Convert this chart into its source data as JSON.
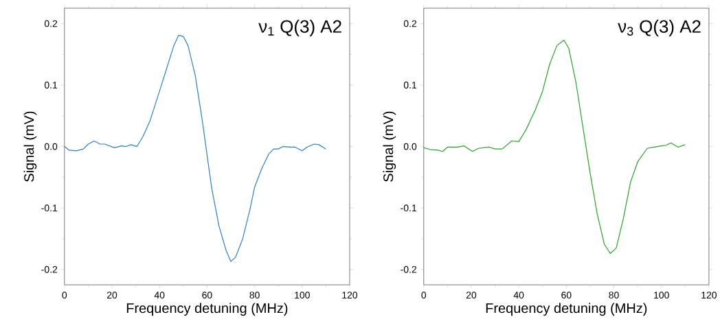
{
  "chart_data": [
    {
      "type": "line",
      "xlabel": "Frequency detuning (MHz)",
      "ylabel": "Signal (mV)",
      "annotations": [
        "ν$_{1}$ Q(3) A2"
      ],
      "xlim": [
        0,
        120
      ],
      "ylim": [
        -0.225,
        0.225
      ],
      "xticks": [
        0,
        20,
        40,
        60,
        80,
        100,
        120
      ],
      "yticks": [
        {
          "value": -0.2,
          "label": "-0.2"
        },
        {
          "value": -0.1,
          "label": "-0.1"
        },
        {
          "value": 0,
          "label": "0.0"
        },
        {
          "value": 0.1,
          "label": "0.1"
        },
        {
          "value": 0.2,
          "label": "0.2"
        }
      ],
      "x": [
        0,
        2,
        5,
        8,
        10,
        12.5,
        15,
        17,
        21,
        24,
        26,
        28,
        30.5,
        33,
        36,
        40,
        43,
        46,
        48,
        50,
        52,
        55,
        58,
        60,
        62,
        65,
        68,
        70,
        72,
        75,
        78,
        80,
        83,
        86,
        88,
        90,
        92,
        95,
        97,
        100,
        102,
        105,
        107,
        110
      ],
      "series": [
        {
          "color": "#2f7fc1",
          "values": [
            0,
            -0.006,
            -0.007,
            -0.004,
            0.004,
            0.009,
            0.004,
            0.004,
            -0.002,
            0.001,
            0,
            0.003,
            0,
            0.016,
            0.042,
            0.09,
            0.127,
            0.164,
            0.181,
            0.179,
            0.164,
            0.116,
            0.042,
            -0.014,
            -0.069,
            -0.129,
            -0.169,
            -0.187,
            -0.18,
            -0.15,
            -0.103,
            -0.066,
            -0.036,
            -0.012,
            -0.004,
            -0.004,
            0,
            -0.001,
            -0.001,
            -0.007,
            -0.001,
            0.004,
            0.003,
            -0.004
          ]
        }
      ]
    },
    {
      "type": "line",
      "xlabel": "Frequency detuning (MHz)",
      "ylabel": "Signal (mV)",
      "annotations": [
        "ν$_{3}$ Q(3) A2"
      ],
      "xlim": [
        0,
        120
      ],
      "ylim": [
        -0.225,
        0.225
      ],
      "xticks": [
        0,
        20,
        40,
        60,
        80,
        100,
        120
      ],
      "yticks": [
        {
          "value": -0.2,
          "label": "-0.2"
        },
        {
          "value": -0.1,
          "label": "-0.1"
        },
        {
          "value": 0,
          "label": "0.0"
        },
        {
          "value": 0.1,
          "label": "0.1"
        },
        {
          "value": 0.2,
          "label": "0.2"
        }
      ],
      "x": [
        0,
        3,
        6,
        8,
        10,
        14,
        17,
        20.5,
        23,
        27.5,
        30,
        33,
        37,
        40,
        43,
        47,
        50,
        53,
        56,
        59,
        61,
        64,
        67,
        70,
        73,
        76,
        78.5,
        81,
        84,
        87,
        90,
        94,
        97,
        100,
        102,
        104,
        107,
        110
      ],
      "series": [
        {
          "color": "#2ca02c",
          "values": [
            -0.002,
            -0.005,
            -0.006,
            -0.008,
            -0.001,
            -0.001,
            0.001,
            -0.008,
            -0.003,
            -0.001,
            -0.004,
            -0.004,
            0.009,
            0.008,
            0.027,
            0.06,
            0.09,
            0.134,
            0.164,
            0.173,
            0.16,
            0.105,
            0.031,
            -0.043,
            -0.11,
            -0.159,
            -0.174,
            -0.165,
            -0.117,
            -0.058,
            -0.025,
            -0.003,
            -0.001,
            0.001,
            0.002,
            0.006,
            -0.001,
            0.003
          ]
        }
      ]
    }
  ]
}
